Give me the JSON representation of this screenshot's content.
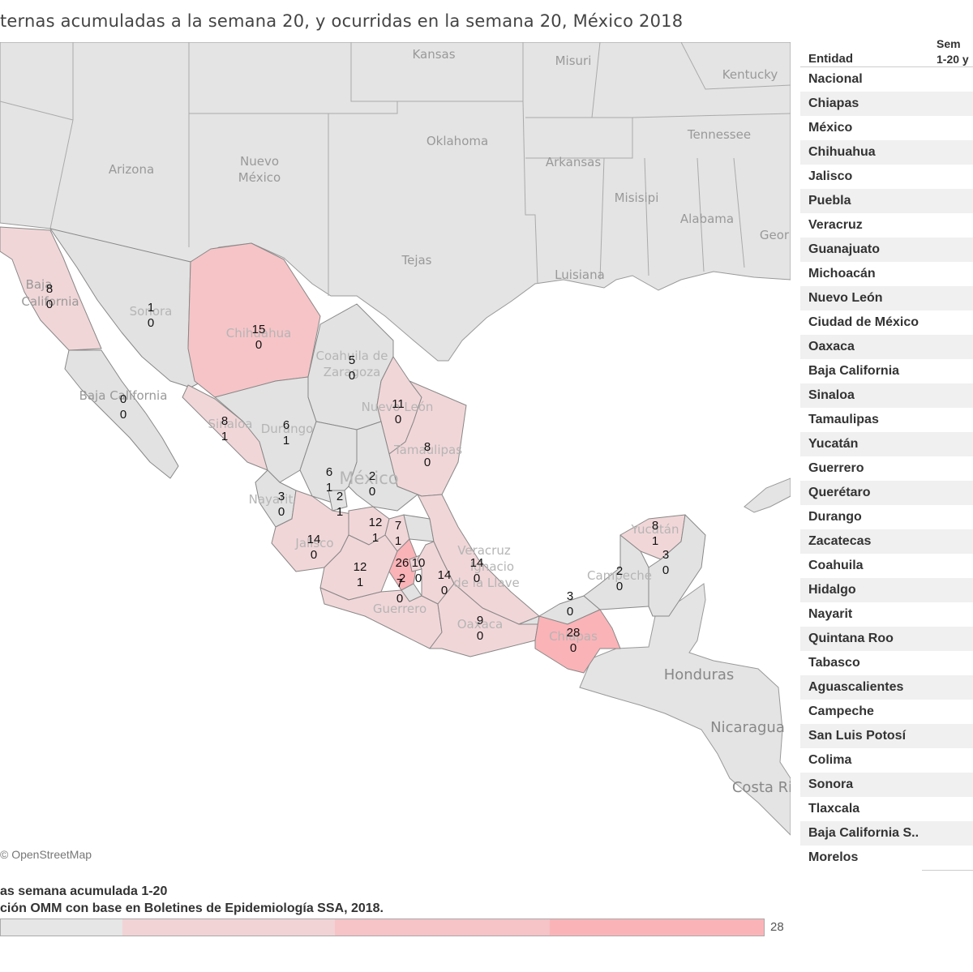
{
  "title": "ternas acumuladas a la semana 20, y ocurridas en la semana 20, México 2018",
  "map": {
    "attribution": "© OpenStreetMap",
    "background_labels": [
      "Kansas",
      "Misuri",
      "Kentucky",
      "Oklahoma",
      "Tennessee",
      "Arizona",
      "Nuevo",
      "México",
      "Arkansas",
      "Misisipi",
      "Alabama",
      "Geor",
      "Tejas",
      "Luisiana",
      "Baja",
      "California",
      "Baja California",
      "Honduras",
      "Nicaragua",
      "Costa Ri"
    ],
    "faded_state_labels": [
      "Sonora",
      "Chihuahua",
      "Coahuila de",
      "Zaragoza",
      "Nuevo León",
      "Tamaulipas",
      "Durango",
      "Sinaloa",
      "Nayarit",
      "Jalisco",
      "Guerrero",
      "Oaxaca",
      "Chiapas",
      "Campeche",
      "Yucatán",
      "México",
      "Veracruz",
      "Ignacio",
      "de la Llave"
    ],
    "states": [
      {
        "name": "Baja California",
        "acum": 8,
        "sem": 0
      },
      {
        "name": "Sonora",
        "acum": 1,
        "sem": 0
      },
      {
        "name": "Chihuahua",
        "acum": 15,
        "sem": 0
      },
      {
        "name": "Coahuila",
        "acum": 5,
        "sem": 0
      },
      {
        "name": "Baja California Sur",
        "acum": 0,
        "sem": 0
      },
      {
        "name": "Nuevo León",
        "acum": 11,
        "sem": 0
      },
      {
        "name": "Sinaloa",
        "acum": 8,
        "sem": 1
      },
      {
        "name": "Durango",
        "acum": 6,
        "sem": 1
      },
      {
        "name": "Tamaulipas",
        "acum": 8,
        "sem": 0
      },
      {
        "name": "Zacatecas",
        "acum": 6,
        "sem": 1
      },
      {
        "name": "San Luis Potosí",
        "acum": 2,
        "sem": 0
      },
      {
        "name": "Nayarit",
        "acum": 3,
        "sem": 0
      },
      {
        "name": "Aguascalientes",
        "acum": 2,
        "sem": 1
      },
      {
        "name": "Guanajuato",
        "acum": 12,
        "sem": 1
      },
      {
        "name": "Querétaro",
        "acum": 7,
        "sem": 1
      },
      {
        "name": "Jalisco",
        "acum": 14,
        "sem": 0
      },
      {
        "name": "Michoacán",
        "acum": 12,
        "sem": 1
      },
      {
        "name": "México",
        "acum": 26,
        "sem": 2
      },
      {
        "name": "Ciudad de México",
        "acum": 10,
        "sem": 0
      },
      {
        "name": "Puebla",
        "acum": 14,
        "sem": 0
      },
      {
        "name": "Veracruz",
        "acum": 14,
        "sem": 0
      },
      {
        "name": "Guerrero",
        "acum": 7,
        "sem": 0
      },
      {
        "name": "Oaxaca",
        "acum": 9,
        "sem": 0
      },
      {
        "name": "Tabasco",
        "acum": 3,
        "sem": 0
      },
      {
        "name": "Chiapas",
        "acum": 28,
        "sem": 0
      },
      {
        "name": "Campeche",
        "acum": 2,
        "sem": 0
      },
      {
        "name": "Yucatán",
        "acum": 8,
        "sem": 1
      },
      {
        "name": "Quintana Roo",
        "acum": 3,
        "sem": 0
      }
    ]
  },
  "table": {
    "col_entidad": "Entidad",
    "col_semana_line1": "Sem",
    "col_semana_line2": "1-20 y",
    "rows": [
      "Nacional",
      "Chiapas",
      "México",
      "Chihuahua",
      "Jalisco",
      "Puebla",
      "Veracruz",
      "Guanajuato",
      "Michoacán",
      "Nuevo León",
      "Ciudad de México",
      "Oaxaca",
      "Baja California",
      "Sinaloa",
      "Tamaulipas",
      "Yucatán",
      "Guerrero",
      "Querétaro",
      "Durango",
      "Zacatecas",
      "Coahuila",
      "Hidalgo",
      "Nayarit",
      "Quintana Roo",
      "Tabasco",
      "Aguascalientes",
      "Campeche",
      "San Luis Potosí",
      "Colima",
      "Sonora",
      "Tlaxcala",
      "Baja California S..",
      "Morelos"
    ]
  },
  "legend": {
    "title": "as semana acumulada 1-20",
    "source": "ción OMM con base en Boletines de Epidemiología SSA, 2018.",
    "max_label": "28",
    "steps": [
      "#e6e6e6",
      "#f1d3d5",
      "#f6c3c6",
      "#fab4b8"
    ]
  },
  "colors": {
    "water": "#ffffff",
    "land": "#e4e4e4",
    "mx_zero": "#e2e2e2",
    "mx_low": "#f1d6d8",
    "mx_mid": "#f6c4c7",
    "mx_high": "#fab3b7",
    "border": "#888888"
  }
}
